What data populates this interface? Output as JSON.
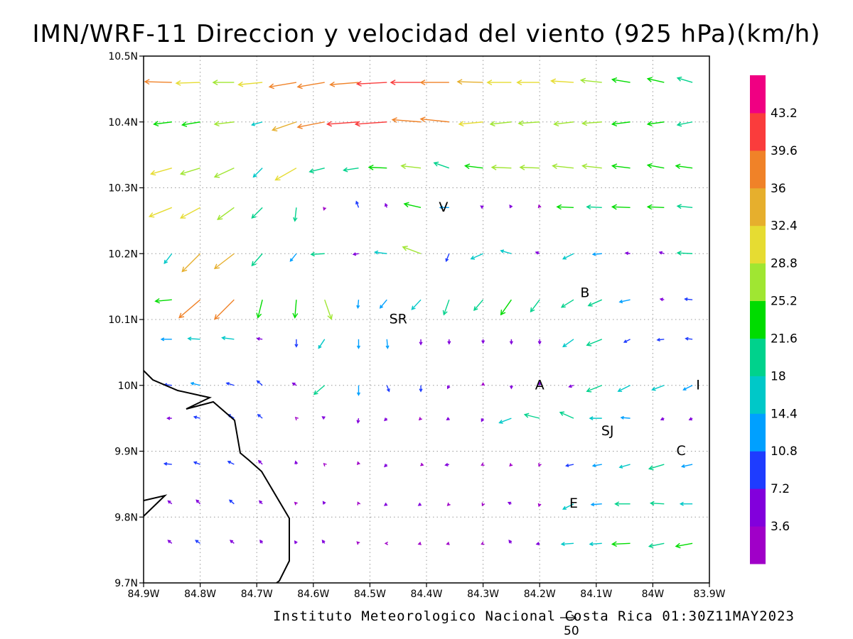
{
  "title": "IMN/WRF-11 Direccion y velocidad del viento (925 hPa)(km/h)",
  "footer": "Instituto Meteorologico Nacional Costa Rica 01:30Z11MAY2023",
  "reference_vector_label": "50",
  "colors": {
    "coast": "#000000",
    "grid": "#999999",
    "legend": [
      "#a000c8",
      "#8200dc",
      "#1e3cff",
      "#00a0ff",
      "#00c8c8",
      "#00d28c",
      "#00dc00",
      "#a0e632",
      "#e6dc32",
      "#e6af2d",
      "#f08228",
      "#fa3c3c",
      "#f00082"
    ]
  },
  "towns": [
    {
      "id": "V",
      "name": "V",
      "lon": -84.37,
      "lat": 10.27
    },
    {
      "id": "SR",
      "name": "SR",
      "lon": -84.45,
      "lat": 10.1
    },
    {
      "id": "B",
      "name": "B",
      "lon": -84.12,
      "lat": 10.14
    },
    {
      "id": "A",
      "name": "A",
      "lon": -84.2,
      "lat": 10.0
    },
    {
      "id": "I",
      "name": "I",
      "lon": -83.92,
      "lat": 10.0
    },
    {
      "id": "SJ",
      "name": "SJ",
      "lon": -84.08,
      "lat": 9.93
    },
    {
      "id": "C",
      "name": "C",
      "lon": -83.95,
      "lat": 9.9
    },
    {
      "id": "E",
      "name": "E",
      "lon": -84.14,
      "lat": 9.82
    }
  ],
  "chart_data": {
    "type": "vector-field",
    "title": "IMN/WRF-11 Direccion y velocidad del viento (925 hPa)(km/h)",
    "lon_range": [
      -84.9,
      -83.9
    ],
    "lat_range": [
      9.7,
      10.5
    ],
    "x_ticks": [
      "84.9W",
      "84.8W",
      "84.7W",
      "84.6W",
      "84.5W",
      "84.4W",
      "84.3W",
      "84.2W",
      "84.1W",
      "84W",
      "83.9W"
    ],
    "y_ticks": [
      "9.7N",
      "9.8N",
      "9.9N",
      "10N",
      "10.1N",
      "10.2N",
      "10.3N",
      "10.4N",
      "10.5N"
    ],
    "legend": {
      "labels": [
        "3.6",
        "7.2",
        "10.8",
        "14.4",
        "18",
        "21.6",
        "25.2",
        "28.8",
        "32.4",
        "36",
        "39.6",
        "43.2"
      ],
      "colors": [
        "#a000c8",
        "#8200dc",
        "#1e3cff",
        "#00a0ff",
        "#00c8c8",
        "#00d28c",
        "#00dc00",
        "#a0e632",
        "#e6dc32",
        "#e6af2d",
        "#f08228",
        "#fa3c3c",
        "#f00082"
      ]
    },
    "reference_vector": 50,
    "grid": true,
    "lons": [
      -84.85,
      -84.8,
      -84.74,
      -84.69,
      -84.63,
      -84.58,
      -84.52,
      -84.47,
      -84.41,
      -84.36,
      -84.3,
      -84.25,
      -84.2,
      -84.14,
      -84.09,
      -84.04,
      -83.98,
      -83.93
    ],
    "lats": [
      10.46,
      10.4,
      10.33,
      10.27,
      10.2,
      10.13,
      10.07,
      10.0,
      9.95,
      9.88,
      9.82,
      9.76
    ],
    "u": [
      [
        -36,
        -32,
        -28,
        -32,
        -36,
        -36,
        -38,
        -40,
        -40,
        -38,
        -34,
        -32,
        -30,
        -30,
        -28,
        -24,
        -22,
        -20
      ],
      [
        -24,
        -24,
        -26,
        -14,
        -32,
        -36,
        -42,
        -42,
        -38,
        -38,
        -32,
        -28,
        -28,
        -26,
        -26,
        -24,
        -22,
        -20
      ],
      [
        -28,
        -26,
        -26,
        -12,
        -28,
        -20,
        -20,
        -24,
        -26,
        -20,
        -24,
        -26,
        -26,
        -28,
        -26,
        -24,
        -22,
        -22
      ],
      [
        -30,
        -26,
        -22,
        -14,
        -2,
        -1,
        -3,
        -2,
        -22,
        -12,
        -3,
        -2,
        -1,
        -22,
        -20,
        -24,
        -22,
        -20
      ],
      [
        -10,
        -24,
        -26,
        -14,
        -8,
        -18,
        -7,
        -16,
        -24,
        -4,
        -16,
        -14,
        -5,
        -14,
        -12,
        -6,
        -6,
        -20
      ],
      [
        -22,
        -28,
        -26,
        -6,
        -2,
        9,
        -1,
        -9,
        -12,
        -7,
        -12,
        -14,
        -12,
        -16,
        -18,
        -14,
        -5,
        -10
      ],
      [
        -14,
        -16,
        -16,
        -7,
        0,
        -8,
        0,
        1,
        0,
        0,
        0,
        0,
        0,
        -14,
        -20,
        -8,
        -9,
        -9
      ],
      [
        -10,
        -12,
        -10,
        -7,
        -5,
        -14,
        0,
        3,
        0,
        -2,
        0,
        0,
        0,
        -6,
        -20,
        -16,
        -16,
        -12
      ],
      [
        -6,
        -8,
        -8,
        -6,
        -1,
        -3,
        -1,
        -3,
        -2,
        -3,
        -2,
        -16,
        -20,
        -18,
        -16,
        -12,
        -4,
        -4
      ],
      [
        -10,
        -8,
        -8,
        -5,
        -1,
        -1,
        -1,
        -3,
        3,
        -5,
        -2,
        -2,
        -1,
        -10,
        -12,
        -14,
        -20,
        -14
      ],
      [
        -5,
        -5,
        -6,
        -4,
        -2,
        -2,
        -1,
        -3,
        -3,
        -2,
        -1,
        -4,
        -1,
        -14,
        -14,
        -20,
        -18,
        -16
      ],
      [
        -5,
        -6,
        -5,
        -3,
        -2,
        -3,
        -2,
        -2,
        -3,
        -3,
        -2,
        -3,
        -4,
        -16,
        -16,
        -24,
        -20,
        -22
      ]
    ],
    "v": [
      [
        1,
        -1,
        0,
        -3,
        -6,
        -6,
        -3,
        -2,
        0,
        0,
        1,
        0,
        0,
        2,
        3,
        4,
        5,
        6
      ],
      [
        -3,
        -4,
        -3,
        -4,
        -11,
        -7,
        -3,
        -3,
        3,
        4,
        -3,
        -3,
        -2,
        -3,
        -2,
        -3,
        -3,
        -4
      ],
      [
        -8,
        -8,
        -12,
        -12,
        -16,
        -5,
        -3,
        1,
        3,
        7,
        3,
        1,
        1,
        3,
        3,
        3,
        4,
        3
      ],
      [
        -12,
        -14,
        -16,
        -14,
        -18,
        -3,
        8,
        5,
        5,
        0,
        2,
        3,
        3,
        1,
        1,
        1,
        1,
        2
      ],
      [
        -13,
        -24,
        -20,
        -16,
        -10,
        -1,
        -1,
        2,
        9,
        -10,
        -7,
        4,
        2,
        -7,
        -1,
        1,
        2,
        1
      ],
      [
        -2,
        -24,
        -26,
        -24,
        -24,
        -26,
        -11,
        -11,
        -13,
        -20,
        -14,
        -20,
        -16,
        -10,
        -8,
        -3,
        1,
        1
      ],
      [
        0,
        1,
        2,
        1,
        -10,
        -12,
        -12,
        -12,
        -7,
        -6,
        -5,
        -6,
        -6,
        -10,
        -8,
        -4,
        -1,
        1
      ],
      [
        1,
        3,
        3,
        6,
        3,
        -12,
        -13,
        -8,
        -8,
        -4,
        3,
        -4,
        4,
        -2,
        -8,
        -8,
        -6,
        -6
      ],
      [
        0,
        2,
        5,
        5,
        1,
        2,
        -6,
        -3,
        -2,
        -2,
        -4,
        -6,
        5,
        8,
        0,
        1,
        -2,
        -2
      ],
      [
        1,
        3,
        4,
        5,
        4,
        1,
        3,
        -3,
        -1,
        -1,
        -1,
        -2,
        -2,
        -2,
        -2,
        -4,
        -6,
        -3
      ],
      [
        4,
        5,
        5,
        4,
        2,
        3,
        2,
        -2,
        -2,
        -2,
        -2,
        2,
        -3,
        -7,
        -1,
        0,
        1,
        0
      ],
      [
        4,
        4,
        4,
        4,
        3,
        4,
        2,
        0,
        -1,
        -1,
        -1,
        4,
        -1,
        -1,
        -1,
        -1,
        -4,
        -4
      ]
    ]
  }
}
